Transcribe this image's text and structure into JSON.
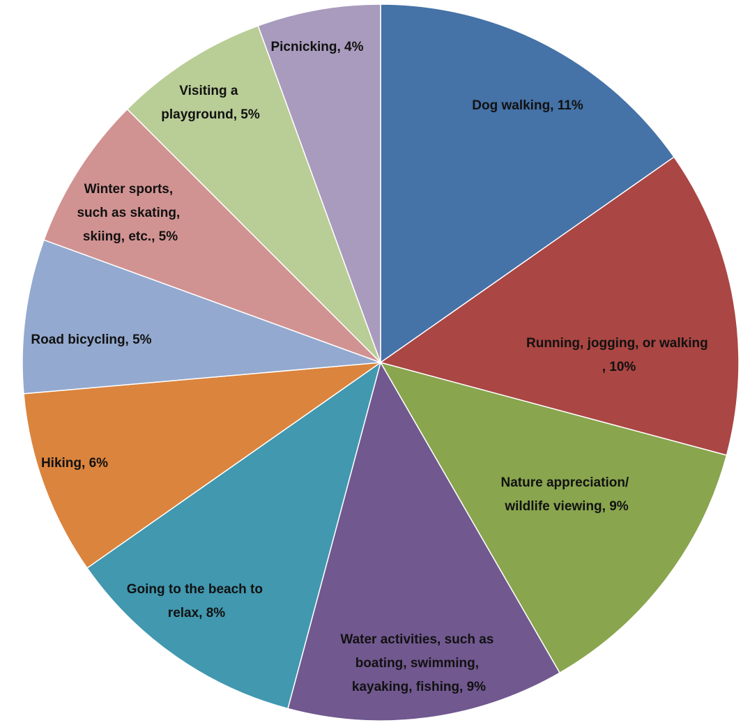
{
  "chart_data": {
    "type": "pie",
    "values": [
      11,
      10,
      9,
      9,
      8,
      6,
      5,
      5,
      5,
      4
    ],
    "value_labels": [
      "Dog walking, 11%",
      "Running, jogging, or walking , 10%",
      "Nature appreciation/ wildlife viewing, 9%",
      "Water activities, such as boating, swimming, kayaking, fishing, 9%",
      "Going to the beach to relax, 8%",
      "Hiking, 6%",
      "Road bicycling, 5%",
      "Winter sports, such as skating, skiing, etc., 5%",
      "Visiting a playground, 5%",
      "Picnicking, 4%"
    ],
    "colors": [
      "#4572a7",
      "#aa4643",
      "#89a54e",
      "#71588f",
      "#4198af",
      "#db843d",
      "#93a9cf",
      "#d19392",
      "#b9cd96",
      "#a99bbd"
    ]
  }
}
